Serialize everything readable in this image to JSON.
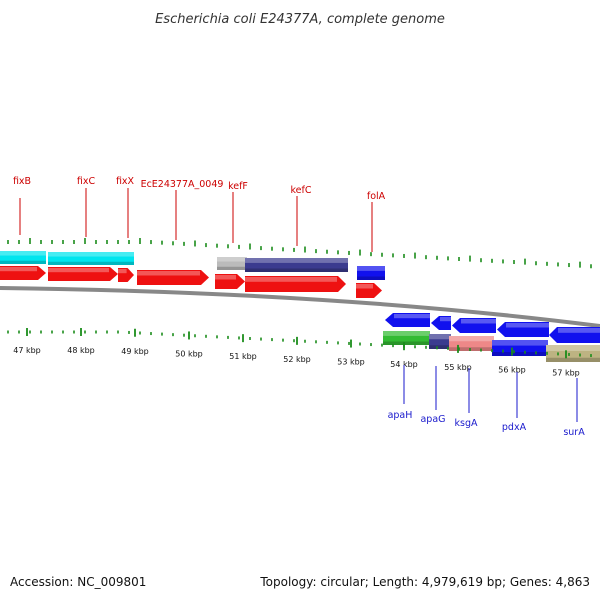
{
  "title": "Escherichia coli E24377A, complete genome",
  "footer": {
    "accession": "Accession: NC_009801",
    "summary": "Topology: circular; Length: 4,979,619 bp; Genes: 4,863"
  },
  "colors": {
    "forward_label": "#cc0000",
    "reverse_label": "#1a1acc",
    "tick": "#1a8c1a",
    "backbone": "#888888",
    "red": "#ee1111",
    "cyan": "#00e5ee",
    "blue": "#1111ee",
    "navy": "#3b3b8f",
    "light_gray": "#bbbbbb",
    "green": "#33bb33",
    "pink": "#ee8888",
    "khaki": "#bdb382"
  },
  "scale": {
    "labels": [
      "47 kbp",
      "48 kbp",
      "49 kbp",
      "50 kbp",
      "51 kbp",
      "52 kbp",
      "53 kbp",
      "54 kbp",
      "55 kbp",
      "56 kbp",
      "57 kbp"
    ]
  },
  "forward_gene_labels": [
    "fixB",
    "fixC",
    "fixX",
    "EcE24377A_0049",
    "kefF",
    "kefC",
    "folA"
  ],
  "reverse_gene_labels": [
    "apaH",
    "apaG",
    "ksgA",
    "pdxA",
    "surA"
  ]
}
